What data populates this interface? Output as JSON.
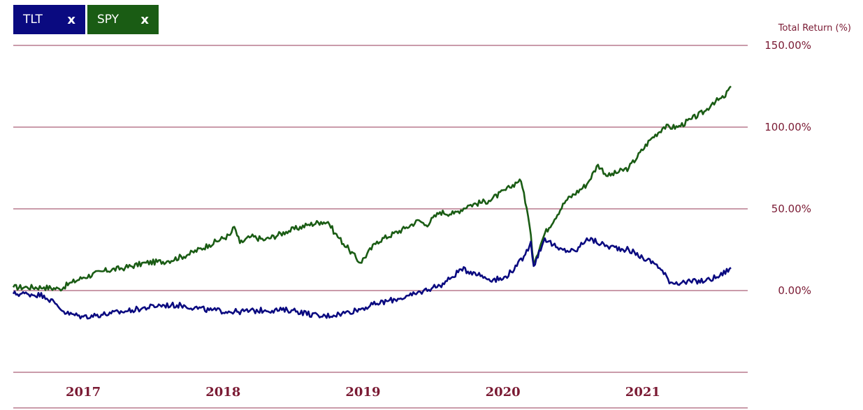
{
  "legend_chips": [
    {
      "label": "TLT",
      "close": "x",
      "color": "#0a0a80"
    },
    {
      "label": "SPY",
      "close": "x",
      "color": "#1a5c14"
    }
  ],
  "axis_color": "#7a1a33",
  "grid_color": "#b87a8e",
  "chart_data": {
    "type": "line",
    "title": "",
    "ylabel": "Total Return (%)",
    "xlabel": "",
    "ylim": [
      -50,
      150
    ],
    "yticks": [
      150,
      100,
      50,
      0
    ],
    "ytick_labels": [
      "150.00%",
      "100.00%",
      "50.00%",
      "0.00%"
    ],
    "xlim": [
      2016.5,
      2021.75
    ],
    "xticks": [
      2017,
      2018,
      2019,
      2020,
      2021
    ],
    "xtick_labels": [
      "2017",
      "2018",
      "2019",
      "2020",
      "2021"
    ],
    "grid": true,
    "legend_placement": "top-left",
    "series": [
      {
        "name": "SPY",
        "color": "#1a5c14",
        "x": [
          2016.5,
          2016.6,
          2016.72,
          2016.83,
          2016.92,
          2017.0,
          2017.15,
          2017.3,
          2017.45,
          2017.6,
          2017.75,
          2017.9,
          2018.05,
          2018.08,
          2018.12,
          2018.2,
          2018.3,
          2018.45,
          2018.6,
          2018.7,
          2018.75,
          2018.8,
          2018.9,
          2018.98,
          2019.1,
          2019.3,
          2019.4,
          2019.45,
          2019.55,
          2019.65,
          2019.75,
          2019.9,
          2020.05,
          2020.12,
          2020.15,
          2020.19,
          2020.22,
          2020.3,
          2020.45,
          2020.6,
          2020.68,
          2020.75,
          2020.9,
          2021.05,
          2021.15,
          2021.25,
          2021.35,
          2021.45,
          2021.5,
          2021.58,
          2021.63
        ],
        "y": [
          2,
          2,
          2,
          1,
          5,
          8,
          12,
          14,
          17,
          18,
          22,
          28,
          34,
          39,
          29,
          33,
          31,
          36,
          40,
          42,
          42,
          35,
          25,
          17,
          30,
          38,
          43,
          40,
          48,
          47,
          52,
          55,
          63,
          68,
          60,
          40,
          17,
          35,
          55,
          65,
          77,
          70,
          75,
          92,
          100,
          100,
          105,
          110,
          115,
          118,
          125
        ]
      },
      {
        "name": "TLT",
        "color": "#0a0a80",
        "x": [
          2016.5,
          2016.6,
          2016.72,
          2016.8,
          2016.88,
          2017.0,
          2017.2,
          2017.35,
          2017.55,
          2017.7,
          2017.9,
          2018.1,
          2018.3,
          2018.5,
          2018.7,
          2018.85,
          2018.95,
          2019.1,
          2019.25,
          2019.35,
          2019.5,
          2019.55,
          2019.62,
          2019.7,
          2019.8,
          2019.9,
          2020.0,
          2020.1,
          2020.16,
          2020.2,
          2020.22,
          2020.3,
          2020.4,
          2020.52,
          2020.6,
          2020.75,
          2020.9,
          2021.0,
          2021.1,
          2021.2,
          2021.3,
          2021.45,
          2021.55,
          2021.63
        ],
        "y": [
          -2,
          -2,
          -3,
          -8,
          -14,
          -16,
          -14,
          -12,
          -9,
          -9,
          -12,
          -13,
          -12,
          -12,
          -16,
          -14,
          -12,
          -8,
          -5,
          -3,
          2,
          3,
          7,
          13,
          11,
          7,
          7,
          15,
          22,
          30,
          15,
          32,
          25,
          24,
          32,
          27,
          25,
          20,
          16,
          5,
          5,
          6,
          9,
          14
        ]
      }
    ]
  }
}
